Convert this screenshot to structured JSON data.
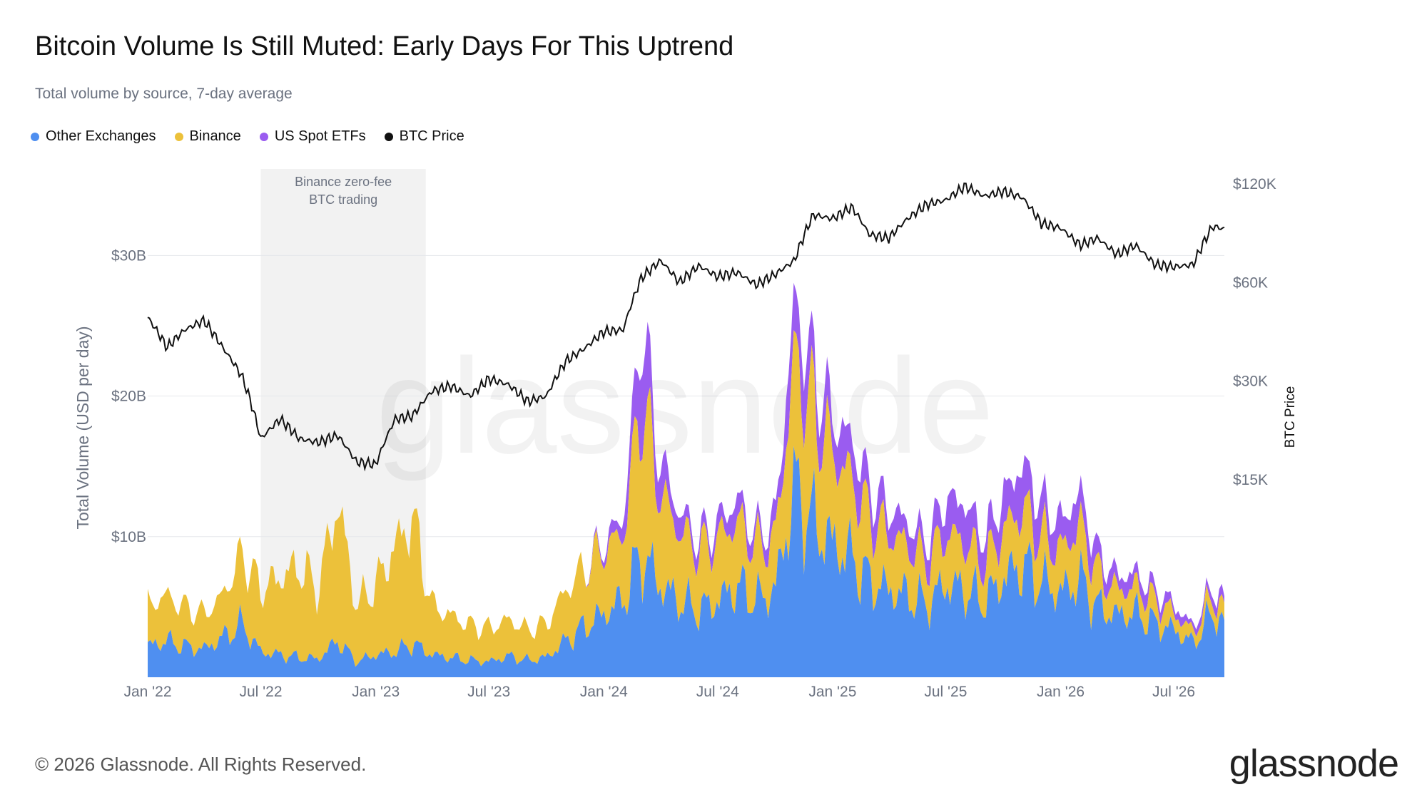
{
  "header": {
    "title": "Bitcoin Volume Is Still Muted: Early Days For This Uptrend",
    "subtitle": "Total volume by source, 7-day average"
  },
  "footer": {
    "copyright": "© 2026 Glassnode. All Rights Reserved.",
    "brand": "glassnode",
    "watermark": "glassnode"
  },
  "colors": {
    "other_exchanges": "#4f8ff0",
    "binance": "#ecc13a",
    "us_spot_etfs": "#9a5cf0",
    "btc_price": "#111111",
    "grid": "#e5e7eb",
    "annotation_band": "#f2f2f2"
  },
  "chart_data": {
    "type": "area",
    "title": "Bitcoin Volume Is Still Muted: Early Days For This Uptrend",
    "subtitle": "Total volume by source, 7-day average",
    "x_ticks": [
      "Jan '22",
      "Jul '22",
      "Jan '23",
      "Jul '23",
      "Jan '24",
      "Jul '24",
      "Jan '25",
      "Jul '25",
      "Jan '26",
      "Jul '26"
    ],
    "x_range": [
      "2022-01-01",
      "2026-09-20"
    ],
    "y_left": {
      "label": "Total Volume (USD per day)",
      "range": [
        0,
        36
      ],
      "unit": "B USD",
      "ticks": [
        10,
        20,
        30
      ],
      "tick_labels": [
        "$10B",
        "$20B",
        "$30B"
      ]
    },
    "y_right": {
      "label": "BTC Price",
      "scale": "log",
      "ticks": [
        15000,
        30000,
        60000,
        120000
      ],
      "tick_labels": [
        "$15K",
        "$30K",
        "$60K",
        "$120K"
      ]
    },
    "grid": true,
    "legend_position": "top-left",
    "annotation": {
      "text_lines": [
        "Binance zero-fee",
        "BTC trading"
      ],
      "x_start": "2022-07-01",
      "x_end": "2023-03-22"
    },
    "x": [
      "2022-01-01",
      "2022-02-01",
      "2022-03-01",
      "2022-04-01",
      "2022-05-01",
      "2022-06-01",
      "2022-07-01",
      "2022-08-01",
      "2022-09-01",
      "2022-10-01",
      "2022-11-01",
      "2022-12-01",
      "2023-01-01",
      "2023-02-01",
      "2023-03-01",
      "2023-04-01",
      "2023-05-01",
      "2023-06-01",
      "2023-07-01",
      "2023-08-01",
      "2023-09-01",
      "2023-10-01",
      "2023-11-01",
      "2023-12-01",
      "2024-01-01",
      "2024-02-01",
      "2024-03-01",
      "2024-04-01",
      "2024-05-01",
      "2024-06-01",
      "2024-07-01",
      "2024-08-01",
      "2024-09-01",
      "2024-10-01",
      "2024-11-01",
      "2024-12-01",
      "2025-01-01",
      "2025-02-01",
      "2025-03-01",
      "2025-04-01",
      "2025-05-01",
      "2025-06-01",
      "2025-07-01",
      "2025-08-01",
      "2025-09-01",
      "2025-10-01",
      "2025-11-01",
      "2025-12-01",
      "2026-01-01",
      "2026-02-01",
      "2026-03-01",
      "2026-04-01",
      "2026-05-01",
      "2026-06-01",
      "2026-07-01",
      "2026-08-01",
      "2026-09-01",
      "2026-09-20"
    ],
    "series": [
      {
        "name": "Other Exchanges",
        "values": [
          2.2,
          2.6,
          2.2,
          2.0,
          2.8,
          3.8,
          1.8,
          1.6,
          1.4,
          1.3,
          2.6,
          1.1,
          1.6,
          1.8,
          2.4,
          1.6,
          1.4,
          1.2,
          1.1,
          1.5,
          1.2,
          1.4,
          2.6,
          3.6,
          4.5,
          5.5,
          8.8,
          6.5,
          5.4,
          4.8,
          5.4,
          6.5,
          5.5,
          6.2,
          13.5,
          11.0,
          9.5,
          8.5,
          6.8,
          6.2,
          5.8,
          5.2,
          6.6,
          6.2,
          5.4,
          7.0,
          8.0,
          6.8,
          6.0,
          7.0,
          5.0,
          4.4,
          4.6,
          3.8,
          3.4,
          2.4,
          4.6,
          3.8
        ]
      },
      {
        "name": "Binance",
        "values": [
          3.0,
          3.2,
          2.8,
          2.5,
          3.0,
          5.0,
          4.5,
          5.5,
          6.5,
          5.0,
          10.0,
          4.0,
          5.0,
          7.5,
          9.0,
          3.5,
          3.0,
          2.5,
          2.4,
          2.6,
          2.2,
          2.4,
          3.6,
          4.2,
          4.6,
          4.6,
          11.0,
          6.5,
          5.0,
          4.2,
          4.4,
          4.6,
          3.8,
          3.6,
          9.0,
          8.0,
          6.5,
          5.5,
          4.5,
          4.0,
          3.6,
          3.0,
          3.6,
          3.4,
          2.6,
          3.4,
          4.0,
          3.2,
          3.0,
          3.8,
          2.4,
          1.8,
          1.8,
          1.6,
          1.2,
          0.8,
          1.2,
          1.0
        ]
      },
      {
        "name": "US Spot ETFs",
        "values": [
          0,
          0,
          0,
          0,
          0,
          0,
          0,
          0,
          0,
          0,
          0,
          0,
          0,
          0,
          0,
          0,
          0,
          0,
          0,
          0,
          0,
          0,
          0,
          0,
          0.5,
          1.2,
          5.5,
          2.2,
          1.4,
          0.9,
          1.1,
          1.6,
          0.9,
          1.4,
          4.0,
          3.0,
          2.5,
          2.8,
          2.2,
          1.8,
          1.6,
          1.5,
          2.5,
          2.8,
          1.9,
          2.4,
          3.2,
          2.4,
          2.0,
          2.3,
          1.4,
          1.0,
          1.0,
          0.8,
          0.6,
          0.4,
          0.7,
          0.6
        ]
      },
      {
        "name": "BTC Price",
        "values": [
          47000,
          38000,
          43000,
          46000,
          38000,
          31000,
          20000,
          23000,
          20000,
          19500,
          20500,
          17000,
          16700,
          23000,
          23500,
          28000,
          29000,
          27000,
          30500,
          29300,
          26000,
          27000,
          34500,
          37700,
          42500,
          43000,
          62000,
          70000,
          60000,
          67500,
          62500,
          64500,
          59000,
          63500,
          70000,
          96500,
          94000,
          102000,
          84000,
          82000,
          94000,
          104000,
          107000,
          118000,
          110000,
          114000,
          109000,
          91000,
          88000,
          78000,
          82000,
          73000,
          78000,
          68000,
          67000,
          68000,
          89000,
          87500
        ]
      }
    ]
  }
}
